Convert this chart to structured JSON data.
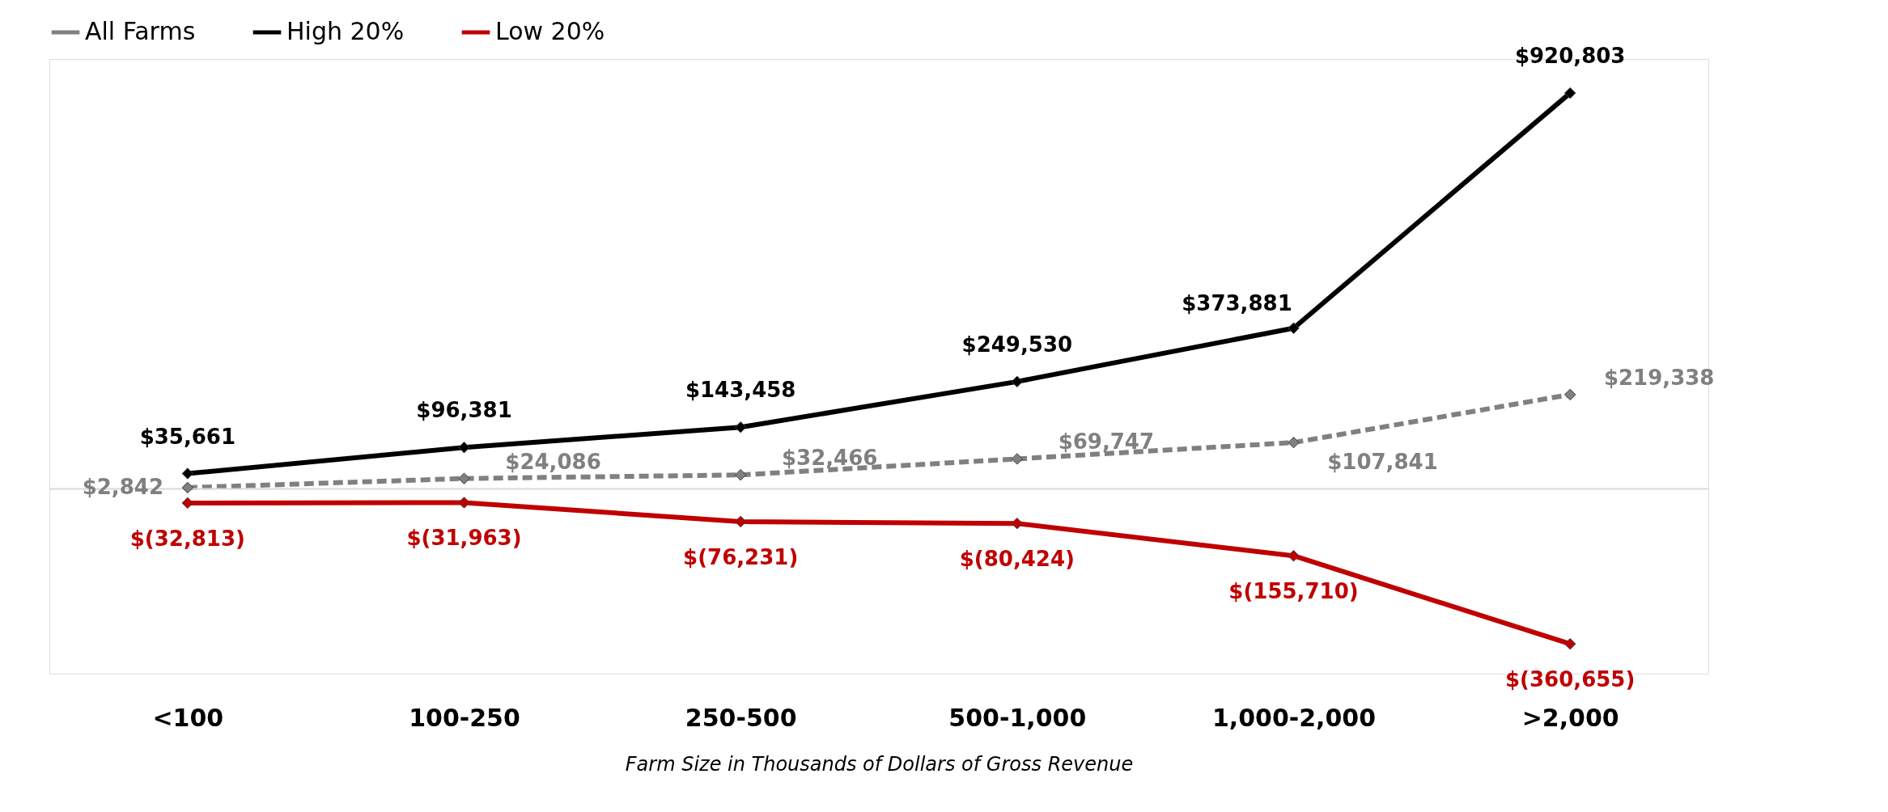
{
  "chart_data": {
    "type": "line",
    "xlabel": "Farm Size in Thousands of Dollars of Gross Revenue",
    "categories": [
      "<100",
      "100-250",
      "250-500",
      "500-1,000",
      "1,000-2,000",
      ">2,000"
    ],
    "series": [
      {
        "name": "All Farms",
        "color": "#808080",
        "line_style": "dashed",
        "values": [
          2842,
          24086,
          32466,
          69747,
          107841,
          219338
        ],
        "value_labels": [
          "$2,842",
          "$24,086",
          "$32,466",
          "$69,747",
          "$107,841",
          "$219,338"
        ]
      },
      {
        "name": "High 20%",
        "color": "#000000",
        "line_style": "solid",
        "values": [
          35661,
          96381,
          143458,
          249530,
          373881,
          920803
        ],
        "value_labels": [
          "$35,661",
          "$96,381",
          "$143,458",
          "$249,530",
          "$373,881",
          "$920,803"
        ]
      },
      {
        "name": "Low 20%",
        "color": "#c00000",
        "line_style": "solid",
        "values": [
          -32813,
          -31963,
          -76231,
          -80424,
          -155710,
          -360655
        ],
        "value_labels": [
          "$(32,813)",
          "$(31,963)",
          "$(76,231)",
          "$(80,424)",
          "$(155,710)",
          "$(360,655)"
        ]
      }
    ],
    "ylim": [
      -430000,
      1000000
    ],
    "tick_labels": "x",
    "marker": "diamond",
    "legend": "top",
    "ref_lines": [
      {
        "axis": "y",
        "value": 0,
        "color": "#d9d9d9"
      }
    ]
  }
}
